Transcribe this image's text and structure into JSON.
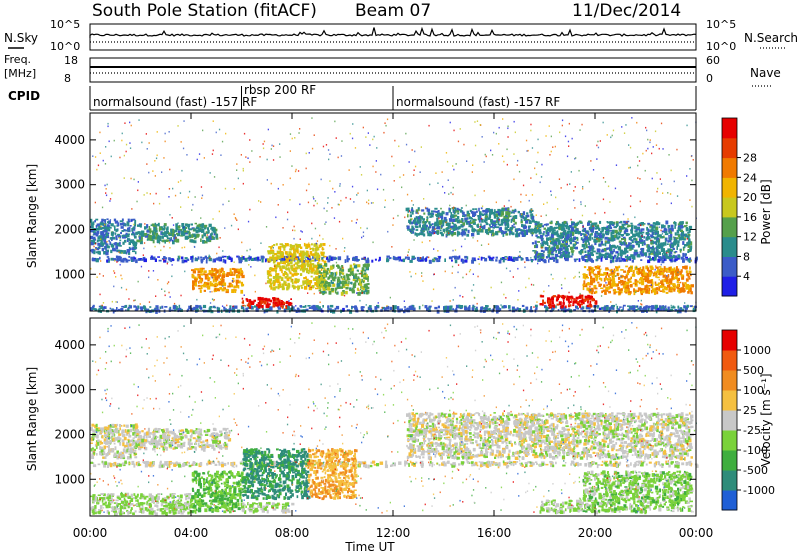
{
  "header": {
    "station": "South Pole Station (fitACF)",
    "beam": "Beam 07",
    "date": "11/Dec/2014"
  },
  "noise_panel": {
    "left_label": "N.Sky",
    "right_label": "N.Search",
    "left_ticks": [
      "10^5",
      "10^0"
    ],
    "right_ticks": [
      "10^5",
      "10^0"
    ]
  },
  "freq_panel": {
    "left_label_1": "Freq.",
    "left_label_2": "[MHz]",
    "right_label": "Nave",
    "left_ticks": [
      "18",
      "8"
    ],
    "right_ticks": [
      "60",
      "0"
    ]
  },
  "cpid": {
    "label": "CPID",
    "segments": [
      {
        "text": "normalsound (fast) -157 RF",
        "start_h": 0,
        "end_h": 6
      },
      {
        "text": "rbsp 200 RF",
        "start_h": 6,
        "end_h": 12
      },
      {
        "text": "normalsound (fast) -157 RF",
        "start_h": 12,
        "end_h": 24
      }
    ]
  },
  "axes": {
    "ylabel": "Slant Range [km]",
    "xlabel": "Time UT",
    "yticks": [
      "1000",
      "2000",
      "3000",
      "4000"
    ],
    "xticks": [
      "00:00",
      "04:00",
      "08:00",
      "12:00",
      "16:00",
      "20:00",
      "00:00"
    ]
  },
  "power_scale": {
    "label": "Power [dB]",
    "ticks": [
      "4",
      "8",
      "12",
      "16",
      "20",
      "24",
      "28"
    ],
    "colors": [
      "#1f1fe6",
      "#3b5cc8",
      "#2a8c8c",
      "#55a04b",
      "#c8c81e",
      "#f0b400",
      "#f07a00",
      "#e63c00",
      "#e60000"
    ]
  },
  "velocity_scale": {
    "label": "Velocity [m s⁻¹]",
    "ticks": [
      "1000",
      "500",
      "100",
      "25",
      "-25",
      "-100",
      "-500",
      "-1000"
    ],
    "colors": [
      "#1f5fd6",
      "#2e8c7a",
      "#3fae3f",
      "#7ad23a",
      "#c8c8c8",
      "#f5c040",
      "#f08c20",
      "#f05a10",
      "#e60000"
    ]
  },
  "chart_data": [
    {
      "type": "heatmap",
      "title": "",
      "quantity": "Power [dB]",
      "xlabel": "Time UT",
      "ylabel": "Slant Range [km]",
      "xlim_hours": [
        0,
        24
      ],
      "ylim_km": [
        180,
        4600
      ],
      "clim": [
        0,
        30
      ],
      "regions": [
        {
          "t0": 0.0,
          "t1": 24.0,
          "r0": 200,
          "r1": 320,
          "value": 6
        },
        {
          "t0": 0.0,
          "t1": 24.0,
          "r0": 1320,
          "r1": 1420,
          "value": 5
        },
        {
          "t0": 0.0,
          "t1": 1.8,
          "r0": 1500,
          "r1": 2250,
          "value": 7
        },
        {
          "t0": 1.8,
          "t1": 5.0,
          "r0": 1750,
          "r1": 2150,
          "value": 9
        },
        {
          "t0": 4.0,
          "t1": 6.0,
          "r0": 650,
          "r1": 1150,
          "value": 20
        },
        {
          "t0": 6.0,
          "t1": 8.0,
          "r0": 300,
          "r1": 500,
          "value": 28
        },
        {
          "t0": 7.0,
          "t1": 9.3,
          "r0": 700,
          "r1": 1700,
          "value": 16
        },
        {
          "t0": 9.0,
          "t1": 11.0,
          "r0": 600,
          "r1": 1250,
          "value": 12
        },
        {
          "t0": 12.5,
          "t1": 17.5,
          "r0": 1900,
          "r1": 2500,
          "value": 8
        },
        {
          "t0": 17.5,
          "t1": 23.8,
          "r0": 1400,
          "r1": 2200,
          "value": 8
        },
        {
          "t0": 17.8,
          "t1": 20.0,
          "r0": 300,
          "r1": 550,
          "value": 28
        },
        {
          "t0": 19.5,
          "t1": 23.8,
          "r0": 600,
          "r1": 1200,
          "value": 20
        }
      ]
    },
    {
      "type": "heatmap",
      "title": "",
      "quantity": "Velocity [m s⁻¹]",
      "xlabel": "Time UT",
      "ylabel": "Slant Range [km]",
      "xlim_hours": [
        0,
        24
      ],
      "ylim_km": [
        180,
        4600
      ],
      "clim": [
        -1000,
        1000
      ],
      "regions": [
        {
          "t0": 0.0,
          "t1": 24.0,
          "r0": 1320,
          "r1": 1420,
          "value": 0
        },
        {
          "t0": 0.0,
          "t1": 1.8,
          "r0": 1500,
          "r1": 2250,
          "value": 0
        },
        {
          "t0": 0.0,
          "t1": 4.0,
          "r0": 250,
          "r1": 700,
          "value": -150
        },
        {
          "t0": 1.8,
          "t1": 5.5,
          "r0": 1700,
          "r1": 2150,
          "value": 0
        },
        {
          "t0": 4.0,
          "t1": 6.0,
          "r0": 300,
          "r1": 1200,
          "value": -300
        },
        {
          "t0": 6.0,
          "t1": 8.0,
          "r0": 300,
          "r1": 500,
          "value": -150
        },
        {
          "t0": 6.0,
          "t1": 8.6,
          "r0": 600,
          "r1": 1700,
          "value": -600
        },
        {
          "t0": 8.6,
          "t1": 10.5,
          "r0": 600,
          "r1": 1700,
          "value": 300
        },
        {
          "t0": 12.5,
          "t1": 23.8,
          "r0": 1500,
          "r1": 2500,
          "value": 0
        },
        {
          "t0": 17.8,
          "t1": 20.0,
          "r0": 300,
          "r1": 550,
          "value": -150
        },
        {
          "t0": 19.5,
          "t1": 23.8,
          "r0": 300,
          "r1": 1200,
          "value": -200
        }
      ]
    }
  ]
}
